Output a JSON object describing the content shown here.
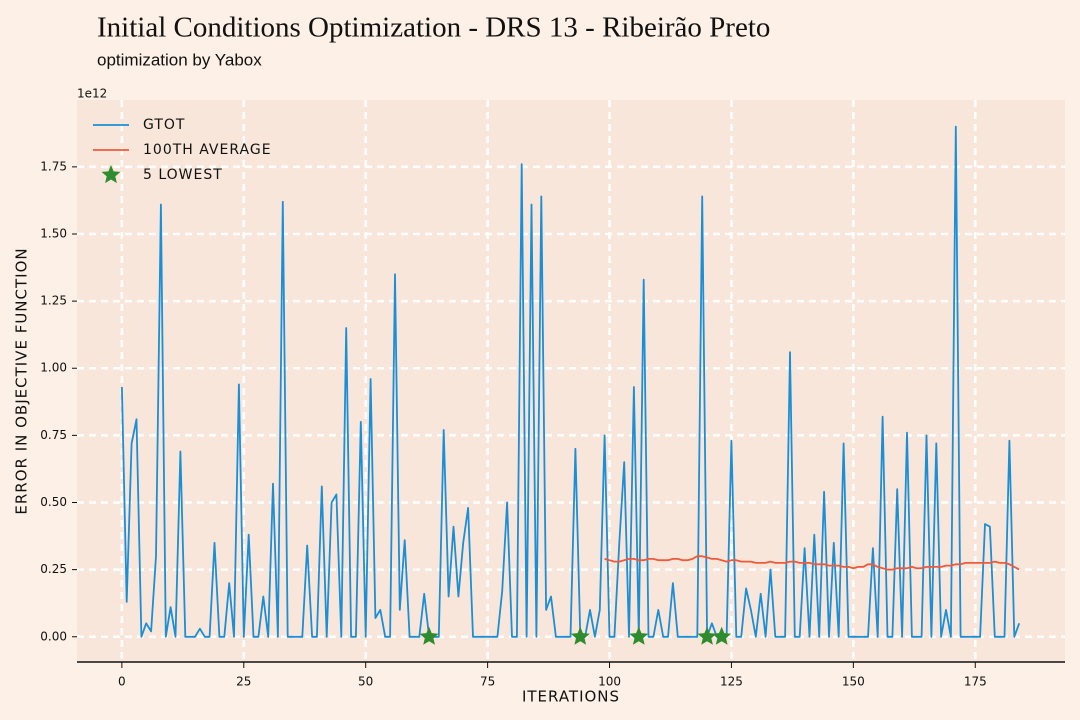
{
  "chart_data": {
    "type": "line",
    "title": "Initial Conditions Optimization - DRS 13 - Ribeirão Preto",
    "subtitle": "optimization by Yabox",
    "x_label": "ITERATIONS",
    "y_label": "ERROR IN OBJECTIVE FUNCTION",
    "y_offset_label": "1e12",
    "xlim": [
      -9.2,
      193.4
    ],
    "ylim": [
      -0.094,
      1.999
    ],
    "xticks": [
      0,
      25,
      50,
      75,
      100,
      125,
      150,
      175
    ],
    "yticks": [
      {
        "value": 0,
        "label": "0.00"
      },
      {
        "value": 0.25,
        "label": "0.25"
      },
      {
        "value": 0.5,
        "label": "0.50"
      },
      {
        "value": 0.75,
        "label": "0.75"
      },
      {
        "value": 1,
        "label": "1.00"
      },
      {
        "value": 1.25,
        "label": "1.25"
      },
      {
        "value": 1.5,
        "label": "1.50"
      },
      {
        "value": 1.75,
        "label": "1.75"
      }
    ],
    "grid": true,
    "legend": "upper left",
    "series": [
      {
        "name": "GTOT",
        "color": "#1a8fd6",
        "x": [
          0,
          1,
          2,
          3,
          4,
          5,
          6,
          7,
          8,
          9,
          10,
          11,
          12,
          13,
          14,
          15,
          16,
          17,
          18,
          19,
          20,
          21,
          22,
          23,
          24,
          25,
          26,
          27,
          28,
          29,
          30,
          31,
          32,
          33,
          34,
          35,
          36,
          37,
          38,
          39,
          40,
          41,
          42,
          43,
          44,
          45,
          46,
          47,
          48,
          49,
          50,
          51,
          52,
          53,
          54,
          55,
          56,
          57,
          58,
          59,
          60,
          61,
          62,
          63,
          64,
          65,
          66,
          67,
          68,
          69,
          70,
          71,
          72,
          73,
          74,
          75,
          76,
          77,
          78,
          79,
          80,
          81,
          82,
          83,
          84,
          85,
          86,
          87,
          88,
          89,
          90,
          91,
          92,
          93,
          94,
          95,
          96,
          97,
          98,
          99,
          100,
          101,
          102,
          103,
          104,
          105,
          106,
          107,
          108,
          109,
          110,
          111,
          112,
          113,
          114,
          115,
          116,
          117,
          118,
          119,
          120,
          121,
          122,
          123,
          124,
          125,
          126,
          127,
          128,
          129,
          130,
          131,
          132,
          133,
          134,
          135,
          136,
          137,
          138,
          139,
          140,
          141,
          142,
          143,
          144,
          145,
          146,
          147,
          148,
          149,
          150,
          151,
          152,
          153,
          154,
          155,
          156,
          157,
          158,
          159,
          160,
          161,
          162,
          163,
          164,
          165,
          166,
          167,
          168,
          169,
          170,
          171,
          172,
          173,
          174,
          175,
          176,
          177,
          178,
          179,
          180,
          181,
          182,
          183,
          184
        ],
        "values": [
          0.93,
          0.13,
          0.72,
          0.81,
          0.0,
          0.05,
          0.02,
          0.3,
          1.61,
          0.0,
          0.11,
          0.0,
          0.69,
          0.0,
          0.0,
          0.0,
          0.03,
          0.0,
          0.0,
          0.35,
          0.0,
          0.0,
          0.2,
          0.0,
          0.94,
          0.0,
          0.38,
          0.0,
          0.0,
          0.15,
          0.0,
          0.57,
          0.0,
          1.62,
          0.0,
          0.0,
          0.0,
          0.0,
          0.34,
          0.0,
          0.0,
          0.56,
          0.0,
          0.5,
          0.53,
          0.0,
          1.15,
          0.0,
          0.0,
          0.8,
          0.0,
          0.96,
          0.07,
          0.1,
          0.0,
          0.0,
          1.35,
          0.1,
          0.36,
          0.0,
          0.0,
          0.0,
          0.16,
          0.0,
          0.0,
          0.0,
          0.77,
          0.15,
          0.41,
          0.15,
          0.35,
          0.48,
          0.0,
          0.0,
          0.0,
          0.0,
          0.0,
          0.0,
          0.17,
          0.5,
          0.0,
          0.0,
          1.76,
          0.0,
          1.61,
          0.0,
          1.64,
          0.1,
          0.15,
          0.0,
          0.0,
          0.0,
          0.0,
          0.7,
          0.0,
          0.0,
          0.1,
          0.0,
          0.1,
          0.75,
          0.0,
          0.0,
          0.35,
          0.65,
          0.0,
          0.93,
          0.0,
          1.33,
          0.0,
          0.0,
          0.1,
          0.0,
          0.0,
          0.2,
          0.0,
          0.0,
          0.0,
          0.0,
          0.0,
          1.64,
          0.0,
          0.05,
          0.0,
          0.0,
          0.0,
          0.73,
          0.0,
          0.0,
          0.18,
          0.1,
          0.0,
          0.16,
          0.0,
          0.25,
          0.0,
          0.0,
          0.0,
          1.06,
          0.0,
          0.0,
          0.33,
          0.0,
          0.38,
          0.0,
          0.54,
          0.0,
          0.35,
          0.0,
          0.72,
          0.0,
          0.0,
          0.0,
          0.0,
          0.0,
          0.33,
          0.0,
          0.82,
          0.0,
          0.0,
          0.55,
          0.0,
          0.76,
          0.0,
          0.0,
          0.0,
          0.75,
          0.0,
          0.72,
          0.0,
          0.1,
          0.0,
          1.9,
          0.0,
          0.0,
          0.0,
          0.0,
          0.0,
          0.42,
          0.41,
          0.0,
          0.0,
          0.0,
          0.73,
          0.0,
          0.05
        ]
      },
      {
        "name": "100TH AVERAGE",
        "color": "#ef5a3c",
        "x": [
          99,
          100,
          101,
          102,
          103,
          104,
          105,
          106,
          107,
          108,
          109,
          110,
          111,
          112,
          113,
          114,
          115,
          116,
          117,
          118,
          119,
          120,
          121,
          122,
          123,
          124,
          125,
          126,
          127,
          128,
          129,
          130,
          131,
          132,
          133,
          134,
          135,
          136,
          137,
          138,
          139,
          140,
          141,
          142,
          143,
          144,
          145,
          146,
          147,
          148,
          149,
          150,
          151,
          152,
          153,
          154,
          155,
          156,
          157,
          158,
          159,
          160,
          161,
          162,
          163,
          164,
          165,
          166,
          167,
          168,
          169,
          170,
          171,
          172,
          173,
          174,
          175,
          176,
          177,
          178,
          179,
          180,
          181,
          182,
          183,
          184
        ],
        "values": [
          0.29,
          0.285,
          0.28,
          0.28,
          0.285,
          0.29,
          0.29,
          0.285,
          0.285,
          0.29,
          0.29,
          0.285,
          0.285,
          0.285,
          0.29,
          0.29,
          0.285,
          0.285,
          0.29,
          0.3,
          0.3,
          0.295,
          0.29,
          0.29,
          0.285,
          0.28,
          0.285,
          0.285,
          0.28,
          0.28,
          0.28,
          0.275,
          0.275,
          0.275,
          0.28,
          0.275,
          0.275,
          0.275,
          0.28,
          0.28,
          0.275,
          0.275,
          0.275,
          0.27,
          0.27,
          0.27,
          0.265,
          0.265,
          0.265,
          0.26,
          0.26,
          0.255,
          0.26,
          0.26,
          0.27,
          0.27,
          0.26,
          0.255,
          0.25,
          0.25,
          0.255,
          0.255,
          0.255,
          0.26,
          0.255,
          0.255,
          0.26,
          0.26,
          0.26,
          0.26,
          0.265,
          0.265,
          0.27,
          0.27,
          0.275,
          0.275,
          0.275,
          0.275,
          0.275,
          0.275,
          0.28,
          0.275,
          0.275,
          0.27,
          0.26,
          0.25
        ]
      },
      {
        "name": "5 LOWEST",
        "color": "#2e8b2e",
        "marker": "star",
        "x": [
          63,
          94,
          106,
          120,
          123
        ],
        "values": [
          0.0,
          0.0,
          0.0,
          0.0,
          0.0
        ]
      }
    ]
  }
}
